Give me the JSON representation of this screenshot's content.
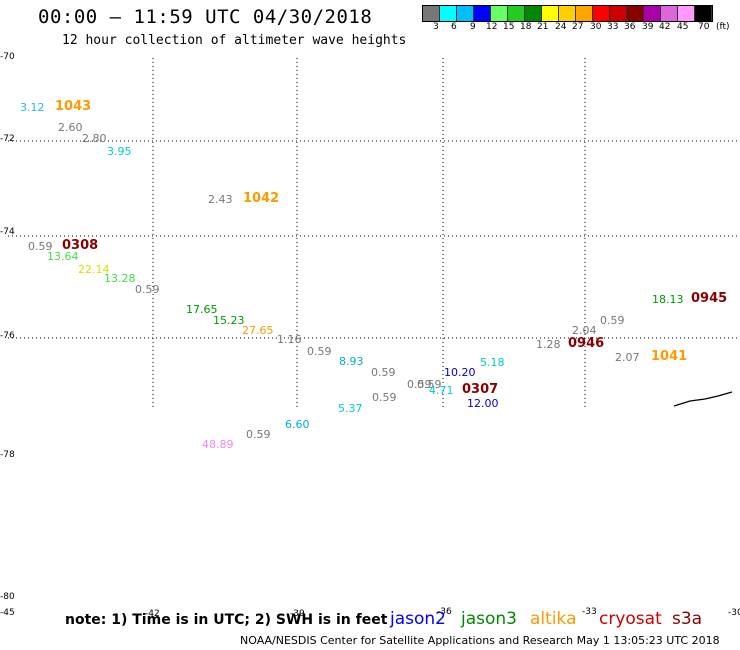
{
  "header": {
    "title": "00:00 – 11:59 UTC 04/30/2018",
    "subtitle": "12 hour collection of altimeter wave heights"
  },
  "colorbar": {
    "swatches": [
      "#777777",
      "#00ffff",
      "#00bfff",
      "#0000ff",
      "#66ff66",
      "#22cc22",
      "#008800",
      "#ffff00",
      "#ffd000",
      "#ffa500",
      "#ff0000",
      "#cc0000",
      "#880000",
      "#aa00aa",
      "#dd66dd",
      "#ff99ff",
      "#000000"
    ],
    "labels": [
      "3",
      "6",
      "9",
      "12",
      "15",
      "18",
      "21",
      "24",
      "27",
      "30",
      "33",
      "36",
      "39",
      "42",
      "45",
      "70",
      "(ft)"
    ]
  },
  "axes": {
    "lat_ticks": [
      "-70",
      "-72",
      "-74",
      "-76",
      "-78",
      "-80"
    ],
    "lon_ticks": [
      "-45",
      "-42",
      "-39",
      "-36",
      "-33",
      "-30"
    ]
  },
  "observations": [
    {
      "text": "3.12",
      "color": "#22bbee"
    },
    {
      "text": "1043",
      "color": "#ff9900",
      "time": true
    },
    {
      "text": "2.60",
      "color": "#777777"
    },
    {
      "text": "2.80",
      "color": "#777777"
    },
    {
      "text": "3.95",
      "color": "#00cccc"
    },
    {
      "text": "2.43",
      "color": "#777777"
    },
    {
      "text": "1042",
      "color": "#ff9900",
      "time": true
    },
    {
      "text": "0.59",
      "color": "#777777"
    },
    {
      "text": "0308",
      "color": "#880000",
      "time": true
    },
    {
      "text": "13.64",
      "color": "#44dd44"
    },
    {
      "text": "22.14",
      "color": "#dddd00"
    },
    {
      "text": "13.28",
      "color": "#44dd44"
    },
    {
      "text": "0.59",
      "color": "#777777"
    },
    {
      "text": "17.65",
      "color": "#009900"
    },
    {
      "text": "15.23",
      "color": "#009900"
    },
    {
      "text": "27.65",
      "color": "#ff9900"
    },
    {
      "text": "1.16",
      "color": "#777777"
    },
    {
      "text": "0.59",
      "color": "#777777"
    },
    {
      "text": "8.93",
      "color": "#00aadd"
    },
    {
      "text": "0.59",
      "color": "#777777"
    },
    {
      "text": "0.59",
      "color": "#777777"
    },
    {
      "text": "0.59",
      "color": "#777777"
    },
    {
      "text": "0.59",
      "color": "#777777"
    },
    {
      "text": "4.71",
      "color": "#00cccc"
    },
    {
      "text": "10.20",
      "color": "#0000cc"
    },
    {
      "text": "5.18",
      "color": "#00cccc"
    },
    {
      "text": "0307",
      "color": "#880000",
      "time": true
    },
    {
      "text": "12.00",
      "color": "#0000cc"
    },
    {
      "text": "5.37",
      "color": "#00cccc"
    },
    {
      "text": "6.60",
      "color": "#00aadd"
    },
    {
      "text": "0.59",
      "color": "#777777"
    },
    {
      "text": "48.89",
      "color": "#ee88ee"
    },
    {
      "text": "1.28",
      "color": "#777777"
    },
    {
      "text": "0946",
      "color": "#880000",
      "time": true
    },
    {
      "text": "2.04",
      "color": "#777777"
    },
    {
      "text": "0.59",
      "color": "#777777"
    },
    {
      "text": "2.07",
      "color": "#777777"
    },
    {
      "text": "1041",
      "color": "#ff9900",
      "time": true
    },
    {
      "text": "18.13",
      "color": "#009900"
    },
    {
      "text": "0945",
      "color": "#880000",
      "time": true
    }
  ],
  "footer": {
    "note": "note: 1) Time is in UTC; 2) SWH is in feet",
    "satellites": [
      {
        "name": "jason2",
        "color": "#0000ff"
      },
      {
        "name": "jason3",
        "color": "#008800"
      },
      {
        "name": "altika",
        "color": "#ff9900"
      },
      {
        "name": "cryosat",
        "color": "#cc0000"
      },
      {
        "name": "s3a",
        "color": "#880000"
      }
    ],
    "credit": "NOAA/NESDIS Center for Satellite Applications and Research     May  1 13:05:23 UTC 2018"
  }
}
